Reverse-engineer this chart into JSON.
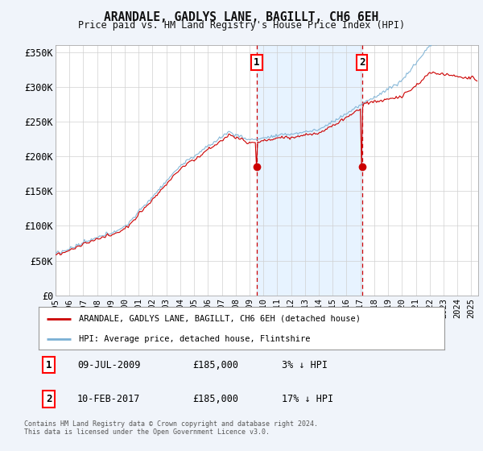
{
  "title": "ARANDALE, GADLYS LANE, BAGILLT, CH6 6EH",
  "subtitle": "Price paid vs. HM Land Registry's House Price Index (HPI)",
  "legend_label_red": "ARANDALE, GADLYS LANE, BAGILLT, CH6 6EH (detached house)",
  "legend_label_blue": "HPI: Average price, detached house, Flintshire",
  "transaction1_date": "09-JUL-2009",
  "transaction1_price": "£185,000",
  "transaction1_hpi": "3% ↓ HPI",
  "transaction2_date": "10-FEB-2017",
  "transaction2_price": "£185,000",
  "transaction2_hpi": "17% ↓ HPI",
  "footnote": "Contains HM Land Registry data © Crown copyright and database right 2024.\nThis data is licensed under the Open Government Licence v3.0.",
  "xlim_start": 1995.0,
  "xlim_end": 2025.5,
  "ylim_bottom": 0,
  "ylim_top": 360000,
  "yticks": [
    0,
    50000,
    100000,
    150000,
    200000,
    250000,
    300000,
    350000
  ],
  "ytick_labels": [
    "£0",
    "£50K",
    "£100K",
    "£150K",
    "£200K",
    "£250K",
    "£300K",
    "£350K"
  ],
  "xticks": [
    1995,
    1996,
    1997,
    1998,
    1999,
    2000,
    2001,
    2002,
    2003,
    2004,
    2005,
    2006,
    2007,
    2008,
    2009,
    2010,
    2011,
    2012,
    2013,
    2014,
    2015,
    2016,
    2017,
    2018,
    2019,
    2020,
    2021,
    2022,
    2023,
    2024,
    2025
  ],
  "transaction1_x": 2009.52,
  "transaction2_x": 2017.11,
  "bg_color": "#f0f4fa",
  "plot_bg_color": "#ffffff",
  "red_color": "#cc0000",
  "blue_color": "#7ab0d4",
  "vline_color": "#cc0000",
  "shade_color": "#ddeeff"
}
